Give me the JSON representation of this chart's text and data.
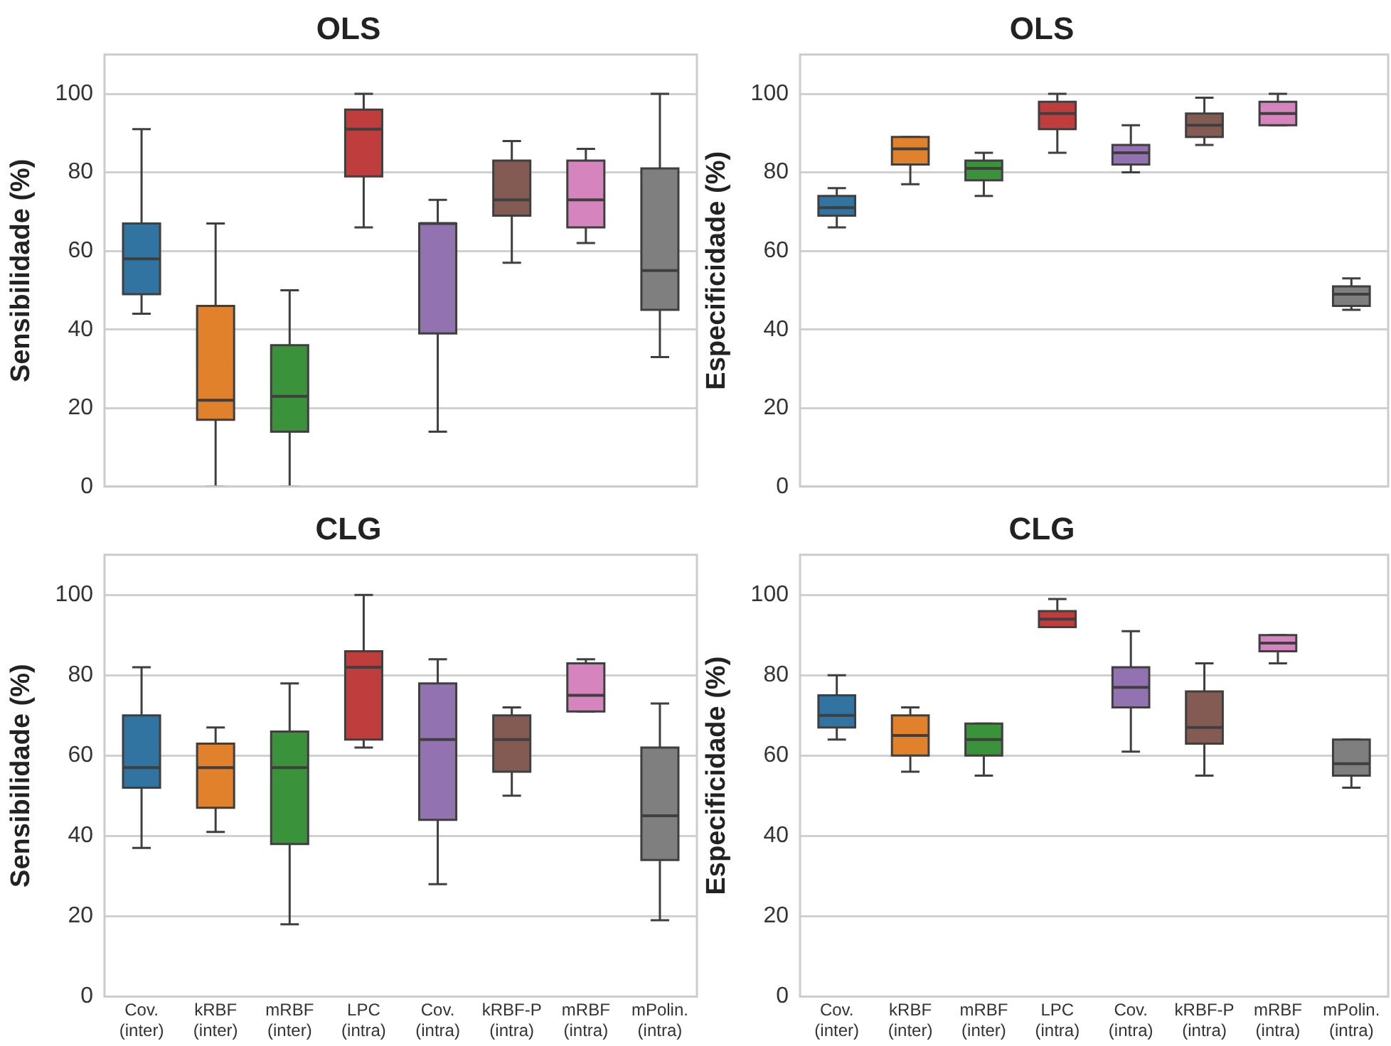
{
  "chart_data": [
    {
      "type": "box",
      "title": "OLS",
      "ylabel": "Sensibilidade (%)",
      "categories": [
        null,
        null,
        null,
        null,
        null,
        null,
        null,
        null
      ],
      "colors": [
        "#3274a1",
        "#e1812c",
        "#3a923a",
        "#c03d3e",
        "#9372b2",
        "#845b53",
        "#d684bd",
        "#7f7f7f"
      ],
      "ylim": [
        0,
        110
      ],
      "yticks": [
        0,
        20,
        40,
        60,
        80,
        100
      ],
      "grid": "y",
      "tick_labels": "y",
      "boxes": [
        {
          "low": 44,
          "q1": 49,
          "median": 58,
          "q3": 67,
          "high": 91
        },
        {
          "low": 0,
          "q1": 17,
          "median": 22,
          "q3": 46,
          "high": 67
        },
        {
          "low": 0,
          "q1": 14,
          "median": 23,
          "q3": 36,
          "high": 50
        },
        {
          "low": 66,
          "q1": 79,
          "median": 91,
          "q3": 96,
          "high": 100
        },
        {
          "low": 14,
          "q1": 39,
          "median": 67,
          "q3": 67,
          "high": 73
        },
        {
          "low": 57,
          "q1": 69,
          "median": 73,
          "q3": 83,
          "high": 88
        },
        {
          "low": 62,
          "q1": 66,
          "median": 73,
          "q3": 83,
          "high": 86
        },
        {
          "low": 33,
          "q1": 45,
          "median": 55,
          "q3": 81,
          "high": 100
        }
      ]
    },
    {
      "type": "box",
      "title": "OLS",
      "ylabel": "Especificidade (%)",
      "categories": [
        null,
        null,
        null,
        null,
        null,
        null,
        null,
        null
      ],
      "colors": [
        "#3274a1",
        "#e1812c",
        "#3a923a",
        "#c03d3e",
        "#9372b2",
        "#845b53",
        "#d684bd",
        "#7f7f7f"
      ],
      "ylim": [
        0,
        110
      ],
      "yticks": [
        0,
        20,
        40,
        60,
        80,
        100
      ],
      "grid": "y",
      "tick_labels": "y",
      "boxes": [
        {
          "low": 66,
          "q1": 69,
          "median": 71,
          "q3": 74,
          "high": 76
        },
        {
          "low": 77,
          "q1": 82,
          "median": 86,
          "q3": 89,
          "high": 89
        },
        {
          "low": 74,
          "q1": 78,
          "median": 81,
          "q3": 83,
          "high": 85
        },
        {
          "low": 85,
          "q1": 91,
          "median": 95,
          "q3": 98,
          "high": 100
        },
        {
          "low": 80,
          "q1": 82,
          "median": 85,
          "q3": 87,
          "high": 92
        },
        {
          "low": 87,
          "q1": 89,
          "median": 92,
          "q3": 95,
          "high": 99
        },
        {
          "low": 92,
          "q1": 92,
          "median": 95,
          "q3": 98,
          "high": 100
        },
        {
          "low": 45,
          "q1": 46,
          "median": 49,
          "q3": 51,
          "high": 53
        }
      ]
    },
    {
      "type": "box",
      "title": "CLG",
      "ylabel": "Sensibilidade (%)",
      "categories": [
        "Cov. (inter)",
        "kRBF (inter)",
        "mRBF (inter)",
        "LPC (intra)",
        "Cov. (intra)",
        "kRBF-P (intra)",
        "mRBF (intra)",
        "mPolin. (intra)"
      ],
      "colors": [
        "#3274a1",
        "#e1812c",
        "#3a923a",
        "#c03d3e",
        "#9372b2",
        "#845b53",
        "#d684bd",
        "#7f7f7f"
      ],
      "ylim": [
        0,
        110
      ],
      "yticks": [
        0,
        20,
        40,
        60,
        80,
        100
      ],
      "grid": "y",
      "boxes": [
        {
          "low": 37,
          "q1": 52,
          "median": 57,
          "q3": 70,
          "high": 82
        },
        {
          "low": 41,
          "q1": 47,
          "median": 57,
          "q3": 63,
          "high": 67
        },
        {
          "low": 18,
          "q1": 38,
          "median": 57,
          "q3": 66,
          "high": 78
        },
        {
          "low": 62,
          "q1": 64,
          "median": 82,
          "q3": 86,
          "high": 100
        },
        {
          "low": 28,
          "q1": 44,
          "median": 64,
          "q3": 78,
          "high": 84
        },
        {
          "low": 50,
          "q1": 56,
          "median": 64,
          "q3": 70,
          "high": 72
        },
        {
          "low": 71,
          "q1": 71,
          "median": 75,
          "q3": 83,
          "high": 84
        },
        {
          "low": 19,
          "q1": 34,
          "median": 45,
          "q3": 62,
          "high": 73
        }
      ]
    },
    {
      "type": "box",
      "title": "CLG",
      "ylabel": "Especificidade (%)",
      "categories": [
        "Cov. (inter)",
        "kRBF (inter)",
        "mRBF (inter)",
        "LPC (intra)",
        "Cov. (intra)",
        "kRBF-P (intra)",
        "mRBF (intra)",
        "mPolin. (intra)"
      ],
      "colors": [
        "#3274a1",
        "#e1812c",
        "#3a923a",
        "#c03d3e",
        "#9372b2",
        "#845b53",
        "#d684bd",
        "#7f7f7f"
      ],
      "ylim": [
        0,
        110
      ],
      "yticks": [
        0,
        20,
        40,
        60,
        80,
        100
      ],
      "grid": "y",
      "boxes": [
        {
          "low": 64,
          "q1": 67,
          "median": 70,
          "q3": 75,
          "high": 80
        },
        {
          "low": 56,
          "q1": 60,
          "median": 65,
          "q3": 70,
          "high": 72
        },
        {
          "low": 55,
          "q1": 60,
          "median": 64,
          "q3": 68,
          "high": 68
        },
        {
          "low": 92,
          "q1": 92,
          "median": 94,
          "q3": 96,
          "high": 99
        },
        {
          "low": 61,
          "q1": 72,
          "median": 77,
          "q3": 82,
          "high": 91
        },
        {
          "low": 55,
          "q1": 63,
          "median": 67,
          "q3": 76,
          "high": 83
        },
        {
          "low": 83,
          "q1": 86,
          "median": 88,
          "q3": 90,
          "high": 90
        },
        {
          "low": 52,
          "q1": 55,
          "median": 58,
          "q3": 64,
          "high": 64
        }
      ]
    }
  ]
}
